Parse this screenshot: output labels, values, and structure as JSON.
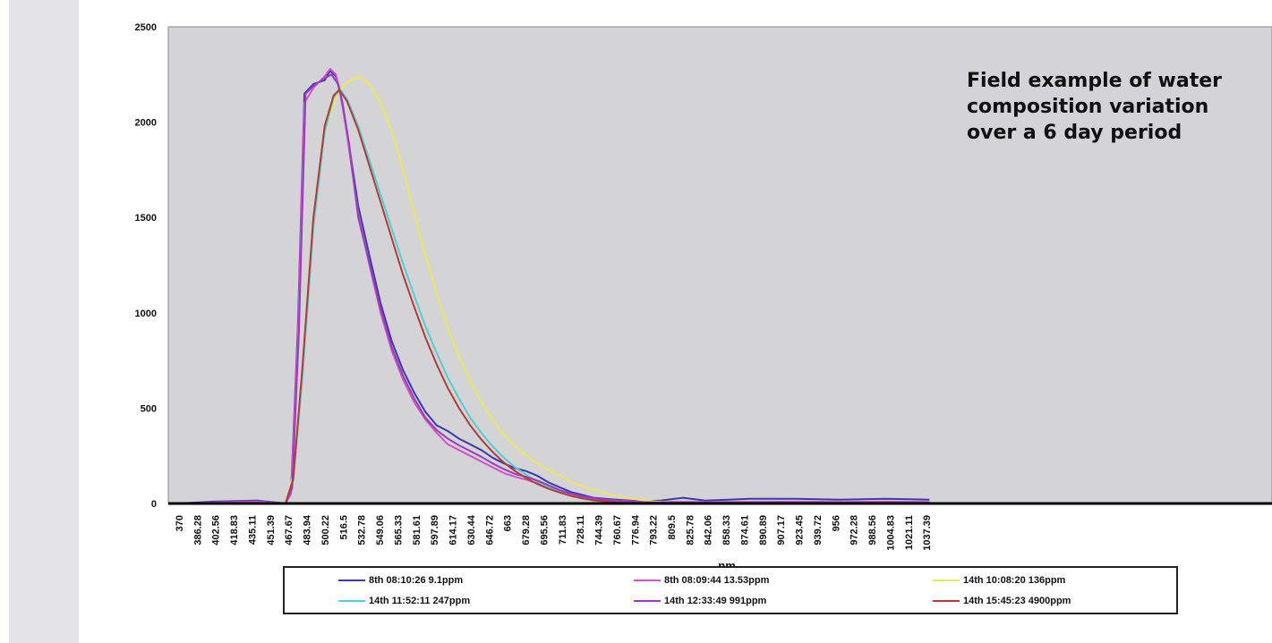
{
  "annotation": "Field example of water composition variation over a 6 day period",
  "chart_data": {
    "type": "line",
    "xlabel": "nm",
    "ylabel": "",
    "ylim": [
      0,
      2500
    ],
    "yticks": [
      0,
      500,
      1000,
      1500,
      2000,
      2500
    ],
    "x_tick_labels": [
      "370",
      "386.28",
      "402.56",
      "418.83",
      "435.11",
      "451.39",
      "467.67",
      "483.94",
      "500.22",
      "516.5",
      "532.78",
      "549.06",
      "565.33",
      "581.61",
      "597.89",
      "614.17",
      "630.44",
      "646.72",
      "663",
      "679.28",
      "695.56",
      "711.83",
      "728.11",
      "744.39",
      "760.67",
      "776.94",
      "793.22",
      "809.5",
      "825.78",
      "842.06",
      "858.33",
      "874.61",
      "890.89",
      "907.17",
      "923.45",
      "939.72",
      "956",
      "972.28",
      "988.56",
      "1004.83",
      "1021.11",
      "1037.39"
    ],
    "x_range": [
      370,
      1040
    ],
    "grid": false,
    "background": "#d4d4d6",
    "legend_position": "bottom",
    "series": [
      {
        "name": "8th 08:10:26 9.1ppm",
        "color": "#3a3aa8",
        "points": [
          [
            370,
            0
          ],
          [
            400,
            10
          ],
          [
            440,
            15
          ],
          [
            465,
            0
          ],
          [
            470,
            60
          ],
          [
            476,
            900
          ],
          [
            482,
            2150
          ],
          [
            490,
            2200
          ],
          [
            500,
            2220
          ],
          [
            505,
            2270
          ],
          [
            510,
            2240
          ],
          [
            514,
            2150
          ],
          [
            520,
            1950
          ],
          [
            530,
            1560
          ],
          [
            540,
            1300
          ],
          [
            550,
            1050
          ],
          [
            560,
            850
          ],
          [
            570,
            700
          ],
          [
            580,
            580
          ],
          [
            590,
            480
          ],
          [
            600,
            410
          ],
          [
            610,
            380
          ],
          [
            620,
            340
          ],
          [
            630,
            310
          ],
          [
            640,
            280
          ],
          [
            650,
            240
          ],
          [
            660,
            210
          ],
          [
            670,
            185
          ],
          [
            680,
            170
          ],
          [
            690,
            145
          ],
          [
            700,
            110
          ],
          [
            710,
            85
          ],
          [
            720,
            60
          ],
          [
            730,
            45
          ],
          [
            740,
            30
          ],
          [
            760,
            20
          ],
          [
            780,
            12
          ],
          [
            800,
            15
          ],
          [
            820,
            30
          ],
          [
            840,
            15
          ],
          [
            880,
            25
          ],
          [
            920,
            25
          ],
          [
            960,
            20
          ],
          [
            1000,
            25
          ],
          [
            1040,
            20
          ]
        ]
      },
      {
        "name": "8th 08:09:44 13.53ppm",
        "color": "#d452c8",
        "points": [
          [
            370,
            0
          ],
          [
            400,
            5
          ],
          [
            440,
            10
          ],
          [
            465,
            0
          ],
          [
            470,
            50
          ],
          [
            476,
            850
          ],
          [
            482,
            2100
          ],
          [
            490,
            2180
          ],
          [
            500,
            2240
          ],
          [
            505,
            2280
          ],
          [
            510,
            2250
          ],
          [
            514,
            2160
          ],
          [
            520,
            1930
          ],
          [
            530,
            1520
          ],
          [
            540,
            1250
          ],
          [
            550,
            1000
          ],
          [
            560,
            800
          ],
          [
            570,
            650
          ],
          [
            580,
            530
          ],
          [
            590,
            440
          ],
          [
            600,
            370
          ],
          [
            610,
            310
          ],
          [
            620,
            280
          ],
          [
            630,
            250
          ],
          [
            640,
            220
          ],
          [
            650,
            190
          ],
          [
            660,
            160
          ],
          [
            670,
            140
          ],
          [
            680,
            125
          ],
          [
            690,
            105
          ],
          [
            700,
            85
          ],
          [
            710,
            65
          ],
          [
            720,
            50
          ],
          [
            730,
            35
          ],
          [
            740,
            25
          ],
          [
            760,
            15
          ],
          [
            780,
            10
          ],
          [
            800,
            8
          ],
          [
            840,
            8
          ],
          [
            880,
            8
          ],
          [
            920,
            10
          ],
          [
            960,
            8
          ],
          [
            1000,
            10
          ],
          [
            1040,
            8
          ]
        ]
      },
      {
        "name": "14th 10:08:20 136ppm",
        "color": "#e8e85a",
        "points": [
          [
            370,
            0
          ],
          [
            465,
            0
          ],
          [
            472,
            150
          ],
          [
            480,
            700
          ],
          [
            490,
            1500
          ],
          [
            500,
            1950
          ],
          [
            510,
            2130
          ],
          [
            520,
            2210
          ],
          [
            530,
            2240
          ],
          [
            540,
            2200
          ],
          [
            550,
            2100
          ],
          [
            560,
            1950
          ],
          [
            570,
            1750
          ],
          [
            580,
            1520
          ],
          [
            590,
            1300
          ],
          [
            600,
            1100
          ],
          [
            610,
            920
          ],
          [
            620,
            770
          ],
          [
            630,
            640
          ],
          [
            640,
            530
          ],
          [
            650,
            440
          ],
          [
            660,
            360
          ],
          [
            670,
            300
          ],
          [
            680,
            250
          ],
          [
            690,
            210
          ],
          [
            700,
            175
          ],
          [
            710,
            145
          ],
          [
            720,
            115
          ],
          [
            730,
            90
          ],
          [
            740,
            70
          ],
          [
            760,
            40
          ],
          [
            780,
            20
          ],
          [
            800,
            8
          ],
          [
            820,
            2
          ],
          [
            860,
            0
          ],
          [
            1040,
            0
          ]
        ]
      },
      {
        "name": "14th 11:52:11 247ppm",
        "color": "#4ecfd2",
        "points": [
          [
            370,
            0
          ],
          [
            465,
            0
          ],
          [
            472,
            120
          ],
          [
            480,
            650
          ],
          [
            490,
            1450
          ],
          [
            500,
            1950
          ],
          [
            508,
            2130
          ],
          [
            514,
            2170
          ],
          [
            520,
            2120
          ],
          [
            530,
            1980
          ],
          [
            540,
            1800
          ],
          [
            550,
            1620
          ],
          [
            560,
            1440
          ],
          [
            570,
            1260
          ],
          [
            580,
            1090
          ],
          [
            590,
            930
          ],
          [
            600,
            790
          ],
          [
            610,
            660
          ],
          [
            620,
            550
          ],
          [
            630,
            450
          ],
          [
            640,
            370
          ],
          [
            650,
            300
          ],
          [
            660,
            240
          ],
          [
            670,
            190
          ],
          [
            680,
            150
          ],
          [
            690,
            115
          ],
          [
            700,
            85
          ],
          [
            710,
            60
          ],
          [
            720,
            40
          ],
          [
            730,
            25
          ],
          [
            740,
            15
          ],
          [
            760,
            5
          ],
          [
            780,
            0
          ],
          [
            1040,
            0
          ]
        ]
      },
      {
        "name": "14th 12:33:49 991ppm",
        "color": "#9a3cc2",
        "points": [
          [
            370,
            0
          ],
          [
            465,
            0
          ],
          [
            471,
            80
          ],
          [
            477,
            900
          ],
          [
            483,
            2150
          ],
          [
            492,
            2200
          ],
          [
            500,
            2230
          ],
          [
            506,
            2250
          ],
          [
            512,
            2200
          ],
          [
            516,
            2100
          ],
          [
            522,
            1880
          ],
          [
            530,
            1500
          ],
          [
            540,
            1260
          ],
          [
            550,
            1020
          ],
          [
            560,
            820
          ],
          [
            570,
            670
          ],
          [
            580,
            550
          ],
          [
            590,
            450
          ],
          [
            600,
            385
          ],
          [
            610,
            340
          ],
          [
            620,
            305
          ],
          [
            630,
            275
          ],
          [
            640,
            245
          ],
          [
            650,
            210
          ],
          [
            660,
            180
          ],
          [
            670,
            155
          ],
          [
            680,
            140
          ],
          [
            690,
            120
          ],
          [
            700,
            95
          ],
          [
            710,
            70
          ],
          [
            720,
            52
          ],
          [
            730,
            38
          ],
          [
            740,
            28
          ],
          [
            760,
            15
          ],
          [
            780,
            8
          ],
          [
            800,
            5
          ],
          [
            840,
            5
          ],
          [
            1040,
            5
          ]
        ]
      },
      {
        "name": "14th 15:45:23 4900ppm",
        "color": "#b53a3a",
        "points": [
          [
            370,
            0
          ],
          [
            465,
            0
          ],
          [
            472,
            130
          ],
          [
            480,
            700
          ],
          [
            490,
            1500
          ],
          [
            500,
            1980
          ],
          [
            508,
            2140
          ],
          [
            513,
            2170
          ],
          [
            520,
            2110
          ],
          [
            530,
            1960
          ],
          [
            540,
            1770
          ],
          [
            550,
            1580
          ],
          [
            560,
            1390
          ],
          [
            570,
            1200
          ],
          [
            580,
            1030
          ],
          [
            590,
            870
          ],
          [
            600,
            730
          ],
          [
            610,
            605
          ],
          [
            620,
            500
          ],
          [
            630,
            410
          ],
          [
            640,
            335
          ],
          [
            650,
            270
          ],
          [
            660,
            215
          ],
          [
            670,
            170
          ],
          [
            680,
            133
          ],
          [
            690,
            102
          ],
          [
            700,
            77
          ],
          [
            710,
            57
          ],
          [
            720,
            40
          ],
          [
            730,
            27
          ],
          [
            740,
            17
          ],
          [
            760,
            6
          ],
          [
            780,
            0
          ],
          [
            1040,
            0
          ]
        ]
      }
    ]
  }
}
